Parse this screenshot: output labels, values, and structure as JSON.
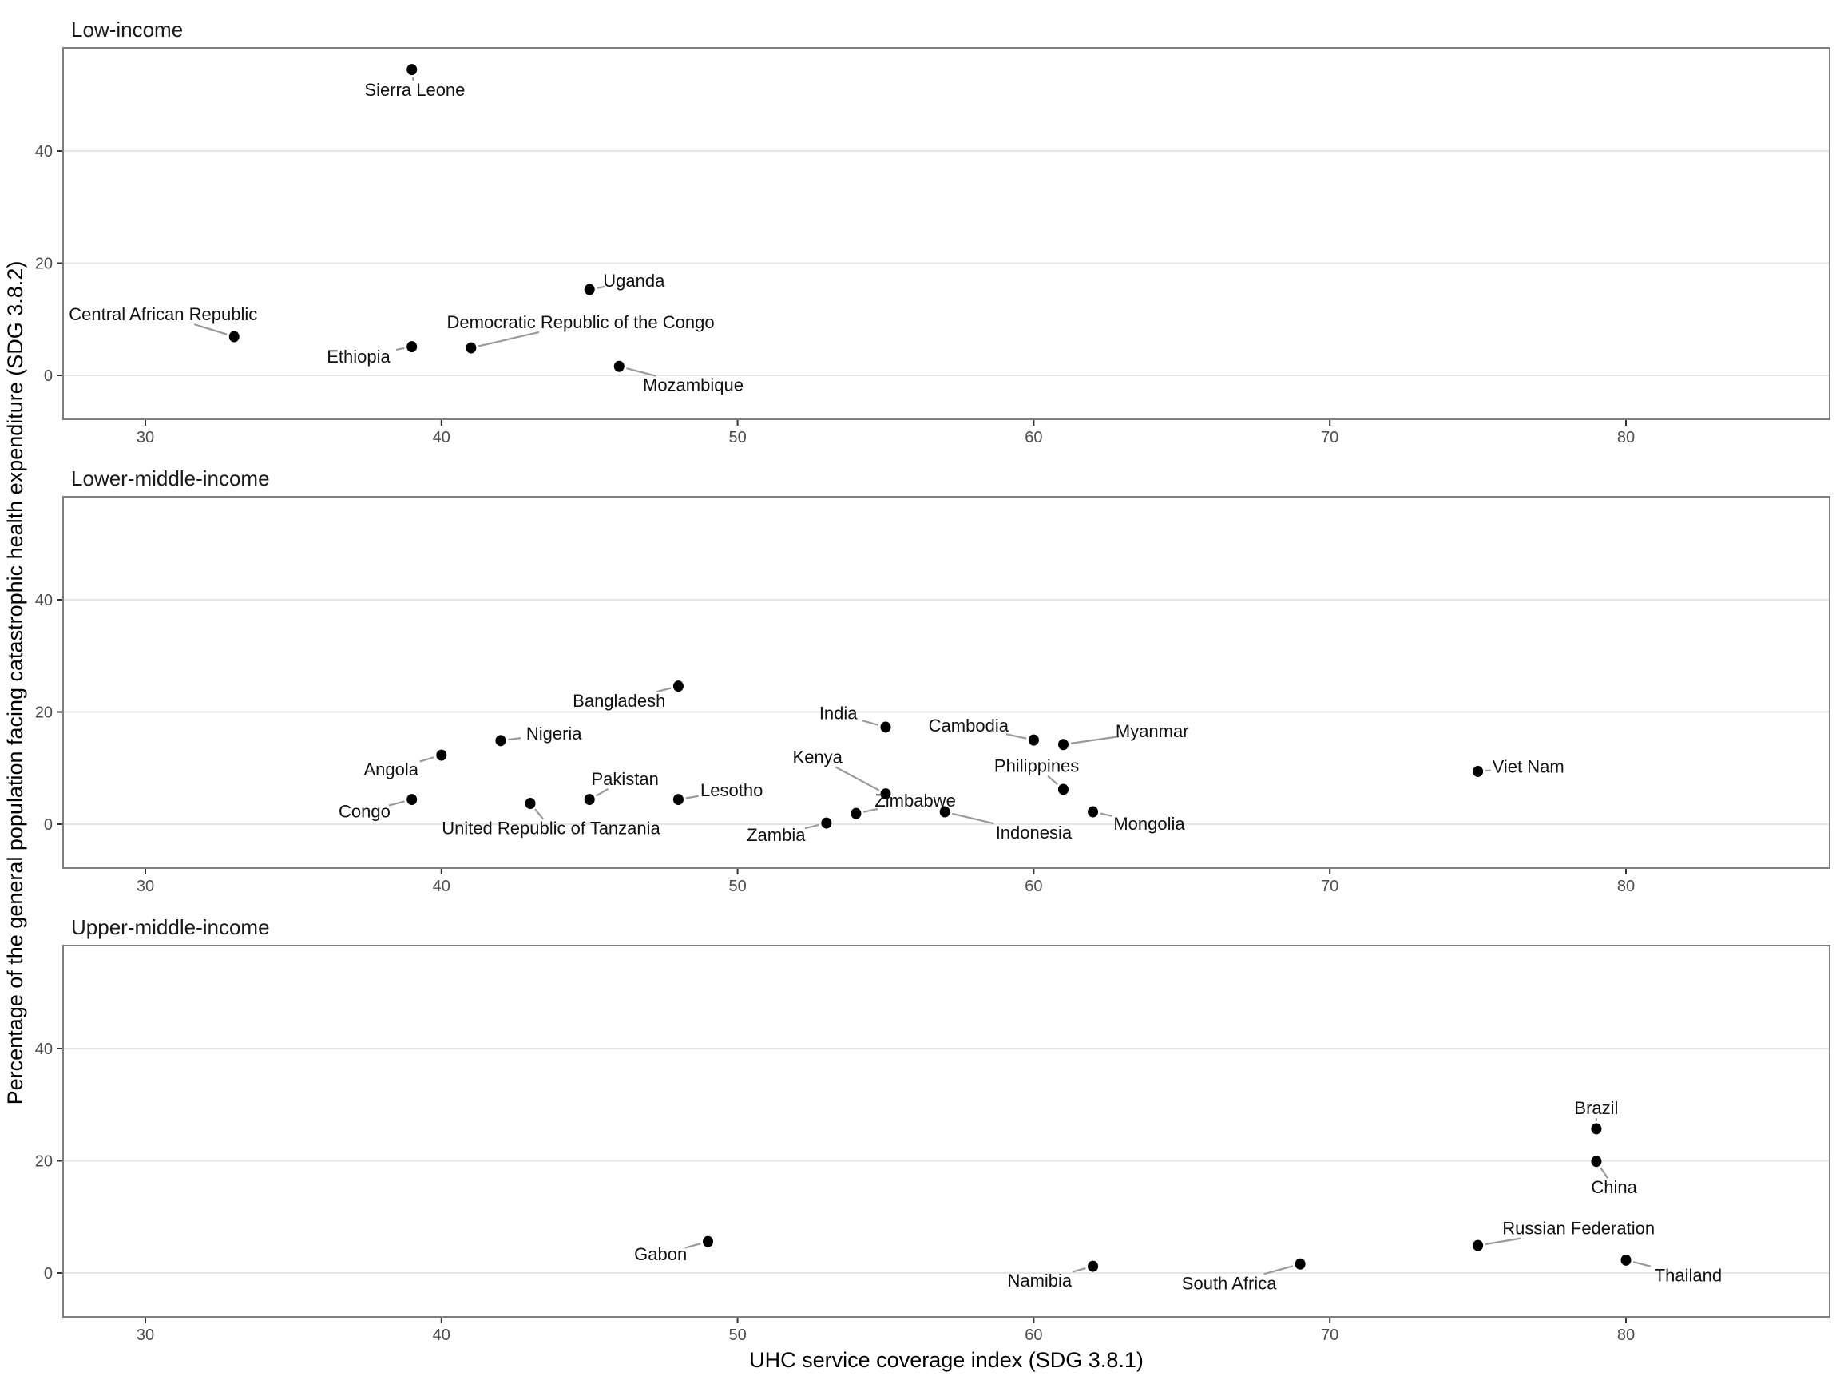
{
  "chart_data": {
    "type": "scatter",
    "title": "",
    "xlabel": "UHC service coverage index (SDG 3.8.1)",
    "ylabel": "Percentage of the general population facing catastrophic health expenditure (SDG 3.8.2)",
    "x_ticks": [
      30,
      40,
      50,
      60,
      70,
      80
    ],
    "y_ticks": [
      0,
      20,
      40
    ],
    "x_range": [
      27.2,
      86.9
    ],
    "y_range": [
      -7.5,
      58.6
    ],
    "grid": "horizontal-major-only",
    "legend": "none",
    "colors": {
      "point": "#000000",
      "leader_line": "#9a9a9a",
      "gridline": "#e6e6e6",
      "panel_border": "#7f7f7f",
      "tick_text": "#4d4d4d",
      "label_text": "#111111",
      "background": "#ffffff"
    },
    "facets": [
      {
        "label": "Low-income",
        "points": [
          {
            "country": "Sierra Leone",
            "x": 39,
            "y": 54.5,
            "label_x": 39.1,
            "label_y": 50.8
          },
          {
            "country": "Uganda",
            "x": 45,
            "y": 15.3,
            "label_x": 46.5,
            "label_y": 16.8
          },
          {
            "country": "Central African Republic",
            "x": 33,
            "y": 6.9,
            "label_x": 30.6,
            "label_y": 10.8
          },
          {
            "country": "Ethiopia",
            "x": 39,
            "y": 5.1,
            "label_x": 37.2,
            "label_y": 3.3
          },
          {
            "country": "Democratic Republic of the Congo",
            "x": 41,
            "y": 4.9,
            "label_x": 44.7,
            "label_y": 9.4
          },
          {
            "country": "Mozambique",
            "x": 46,
            "y": 1.6,
            "label_x": 48.5,
            "label_y": -1.8
          }
        ]
      },
      {
        "label": "Lower-middle-income",
        "points": [
          {
            "country": "Bangladesh",
            "x": 48,
            "y": 24.6,
            "label_x": 46.0,
            "label_y": 21.9
          },
          {
            "country": "Nigeria",
            "x": 42,
            "y": 14.9,
            "label_x": 43.8,
            "label_y": 16.1
          },
          {
            "country": "Angola",
            "x": 40,
            "y": 12.3,
            "label_x": 38.3,
            "label_y": 9.7
          },
          {
            "country": "Congo",
            "x": 39,
            "y": 4.4,
            "label_x": 37.4,
            "label_y": 2.2
          },
          {
            "country": "United Republic of Tanzania",
            "x": 43,
            "y": 3.7,
            "label_x": 43.7,
            "label_y": -0.8
          },
          {
            "country": "Pakistan",
            "x": 45,
            "y": 4.4,
            "label_x": 46.2,
            "label_y": 8.0
          },
          {
            "country": "Lesotho",
            "x": 48,
            "y": 4.4,
            "label_x": 49.8,
            "label_y": 6.0
          },
          {
            "country": "India",
            "x": 55,
            "y": 17.3,
            "label_x": 53.4,
            "label_y": 19.7
          },
          {
            "country": "Cambodia",
            "x": 60,
            "y": 15.0,
            "label_x": 57.8,
            "label_y": 17.5
          },
          {
            "country": "Myanmar",
            "x": 61,
            "y": 14.2,
            "label_x": 64.0,
            "label_y": 16.5
          },
          {
            "country": "Philippines",
            "x": 61,
            "y": 6.2,
            "label_x": 60.1,
            "label_y": 10.3
          },
          {
            "country": "Kenya",
            "x": 55,
            "y": 5.4,
            "label_x": 52.7,
            "label_y": 11.9
          },
          {
            "country": "Zimbabwe",
            "x": 54,
            "y": 1.9,
            "label_x": 56.0,
            "label_y": 4.1
          },
          {
            "country": "Indonesia",
            "x": 57,
            "y": 2.2,
            "label_x": 60.0,
            "label_y": -1.6
          },
          {
            "country": "Mongolia",
            "x": 62,
            "y": 2.2,
            "label_x": 63.9,
            "label_y": 0.0
          },
          {
            "country": "Zambia",
            "x": 53,
            "y": 0.2,
            "label_x": 51.3,
            "label_y": -2.0
          },
          {
            "country": "Viet Nam",
            "x": 75,
            "y": 9.4,
            "label_x": 76.7,
            "label_y": 10.2
          }
        ]
      },
      {
        "label": "Upper-middle-income",
        "points": [
          {
            "country": "Brazil",
            "x": 79,
            "y": 25.7,
            "label_x": 79.0,
            "label_y": 29.3
          },
          {
            "country": "China",
            "x": 79,
            "y": 19.9,
            "label_x": 79.6,
            "label_y": 15.2
          },
          {
            "country": "Gabon",
            "x": 49,
            "y": 5.6,
            "label_x": 47.4,
            "label_y": 3.3
          },
          {
            "country": "Russian Federation",
            "x": 75,
            "y": 4.9,
            "label_x": 78.4,
            "label_y": 7.9
          },
          {
            "country": "Namibia",
            "x": 62,
            "y": 1.2,
            "label_x": 60.2,
            "label_y": -1.4
          },
          {
            "country": "South Africa",
            "x": 69,
            "y": 1.6,
            "label_x": 66.6,
            "label_y": -1.9
          },
          {
            "country": "Thailand",
            "x": 80,
            "y": 2.3,
            "label_x": 82.1,
            "label_y": -0.5
          }
        ]
      }
    ]
  }
}
